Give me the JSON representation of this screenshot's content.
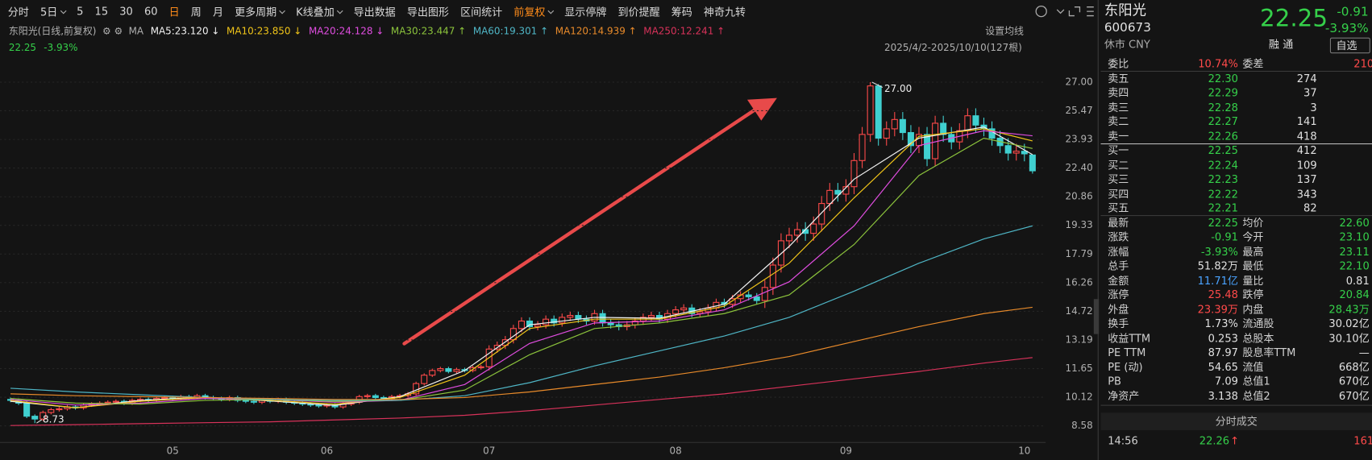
{
  "toolbar": [
    {
      "label": "分时"
    },
    {
      "label": "5日",
      "menu": true
    },
    {
      "label": "5"
    },
    {
      "label": "15"
    },
    {
      "label": "30"
    },
    {
      "label": "60"
    },
    {
      "label": "日",
      "color": "#ff8c1a"
    },
    {
      "label": "周"
    },
    {
      "label": "月"
    },
    {
      "label": "更多周期",
      "menu": true
    },
    {
      "label": "K线叠加",
      "menu": true
    },
    {
      "label": "导出数据"
    },
    {
      "label": "导出图形"
    },
    {
      "label": "区间统计"
    },
    {
      "label": "前复权",
      "menu": true,
      "color": "#ff8c1a"
    },
    {
      "label": "显示停牌"
    },
    {
      "label": "到价提醒"
    },
    {
      "label": "筹码"
    },
    {
      "label": "神奇九转"
    }
  ],
  "chart_data": {
    "type": "candlestick",
    "title": "东阳光(日线,前复权)",
    "legend_title": "MA",
    "price": "22.25",
    "change_pct": "-3.93%",
    "settings_label": "设置均线",
    "range_label": "2025/4/2-2025/10/10(127根)",
    "up_color": "#ff4a4a",
    "down_color": "#40d0d0",
    "categories": [
      null,
      null,
      null,
      null,
      null,
      null,
      null,
      null,
      null,
      null,
      null,
      null,
      null,
      null,
      null,
      null,
      null,
      null,
      null,
      null,
      "05",
      null,
      null,
      null,
      null,
      null,
      null,
      null,
      null,
      null,
      null,
      null,
      null,
      null,
      null,
      null,
      null,
      null,
      null,
      "06",
      null,
      null,
      null,
      null,
      null,
      null,
      null,
      null,
      null,
      null,
      null,
      null,
      null,
      null,
      null,
      null,
      null,
      null,
      null,
      "07",
      null,
      null,
      null,
      null,
      null,
      null,
      null,
      null,
      null,
      null,
      null,
      null,
      null,
      null,
      null,
      null,
      null,
      null,
      null,
      null,
      null,
      null,
      "08",
      null,
      null,
      null,
      null,
      null,
      null,
      null,
      null,
      null,
      null,
      null,
      null,
      null,
      null,
      null,
      null,
      null,
      null,
      null,
      null,
      "09",
      null,
      null,
      null,
      null,
      null,
      null,
      null,
      null,
      null,
      null,
      null,
      null,
      null,
      null,
      null,
      null,
      null,
      null,
      null,
      null,
      null,
      "10",
      null
    ],
    "open": [
      10.0,
      9.95,
      9.8,
      9.1,
      8.95,
      9.3,
      9.45,
      9.5,
      9.6,
      9.55,
      9.7,
      9.75,
      9.8,
      9.85,
      9.9,
      9.8,
      9.95,
      10.0,
      9.95,
      10.05,
      10.1,
      10.05,
      10.15,
      10.1,
      10.2,
      10.1,
      10.05,
      10.0,
      10.1,
      9.95,
      9.9,
      9.85,
      9.95,
      9.9,
      10.0,
      9.85,
      9.8,
      9.75,
      9.7,
      9.65,
      9.7,
      9.6,
      9.75,
      9.85,
      10.15,
      10.2,
      10.1,
      10.05,
      10.15,
      10.2,
      10.3,
      10.85,
      11.3,
      11.55,
      11.65,
      11.5,
      11.6,
      11.55,
      11.7,
      11.75,
      12.7,
      12.9,
      13.2,
      13.8,
      14.2,
      13.9,
      14.0,
      14.3,
      14.1,
      14.4,
      14.5,
      14.3,
      14.2,
      14.6,
      14.1,
      14.0,
      13.9,
      14.0,
      14.2,
      14.4,
      14.5,
      14.3,
      14.6,
      14.8,
      14.9,
      14.6,
      14.7,
      14.9,
      15.2,
      15.1,
      15.4,
      15.6,
      15.5,
      15.3,
      16.0,
      17.2,
      18.5,
      18.8,
      19.1,
      18.9,
      19.4,
      20.5,
      21.2,
      21.0,
      21.4,
      22.8,
      24.2,
      26.8,
      24.0,
      24.5,
      25.0,
      24.3,
      23.6,
      24.2,
      22.9,
      24.8,
      24.2,
      23.8,
      24.4,
      25.2,
      24.7,
      24.5,
      24.0,
      23.6,
      23.2,
      23.3,
      23.1
    ],
    "high": [
      10.1,
      10.05,
      9.9,
      9.2,
      9.4,
      9.55,
      9.6,
      9.7,
      9.7,
      9.8,
      9.85,
      9.9,
      9.95,
      10.0,
      10.0,
      10.05,
      10.1,
      10.1,
      10.15,
      10.2,
      10.2,
      10.25,
      10.25,
      10.3,
      10.3,
      10.2,
      10.15,
      10.2,
      10.2,
      10.05,
      10.0,
      10.05,
      10.05,
      10.1,
      10.1,
      9.95,
      9.9,
      9.85,
      9.8,
      9.8,
      9.8,
      9.85,
      9.95,
      10.25,
      10.3,
      10.3,
      10.2,
      10.25,
      10.3,
      10.4,
      10.95,
      11.4,
      11.65,
      11.75,
      11.75,
      11.7,
      11.7,
      11.8,
      11.85,
      12.9,
      13.1,
      13.4,
      14.0,
      14.4,
      14.4,
      14.2,
      14.5,
      14.5,
      14.6,
      14.7,
      14.7,
      14.5,
      14.8,
      14.8,
      14.3,
      14.2,
      14.2,
      14.4,
      14.6,
      14.7,
      14.7,
      14.8,
      15.0,
      15.1,
      15.1,
      14.9,
      15.1,
      15.4,
      15.4,
      15.6,
      15.8,
      15.8,
      15.7,
      16.4,
      17.6,
      18.9,
      19.2,
      19.5,
      19.5,
      19.8,
      20.9,
      21.6,
      21.6,
      21.8,
      23.2,
      24.6,
      27.0,
      26.9,
      24.9,
      25.4,
      25.4,
      24.7,
      24.6,
      24.6,
      25.2,
      25.2,
      24.6,
      24.8,
      25.6,
      25.6,
      25.1,
      24.9,
      24.4,
      24.0,
      23.7,
      23.7,
      23.11
    ],
    "low": [
      9.85,
      9.7,
      9.0,
      8.73,
      8.85,
      9.2,
      9.35,
      9.4,
      9.45,
      9.45,
      9.6,
      9.65,
      9.7,
      9.75,
      9.7,
      9.7,
      9.85,
      9.85,
      9.85,
      9.95,
      9.95,
      9.95,
      10.0,
      10.0,
      10.0,
      9.95,
      9.9,
      9.9,
      9.85,
      9.8,
      9.75,
      9.75,
      9.8,
      9.8,
      9.75,
      9.7,
      9.65,
      9.6,
      9.55,
      9.55,
      9.5,
      9.5,
      9.65,
      9.75,
      10.05,
      10.0,
      9.95,
      9.95,
      10.05,
      10.1,
      10.2,
      10.75,
      11.2,
      11.45,
      11.4,
      11.4,
      11.45,
      11.45,
      11.6,
      11.55,
      12.5,
      12.7,
      13.0,
      13.6,
      13.7,
      13.7,
      13.8,
      13.9,
      13.9,
      14.2,
      14.1,
      14.0,
      14.0,
      13.9,
      13.8,
      13.7,
      13.7,
      13.8,
      14.0,
      14.2,
      14.1,
      14.1,
      14.4,
      14.6,
      14.4,
      14.4,
      14.5,
      14.7,
      14.9,
      14.9,
      15.2,
      15.3,
      15.1,
      14.9,
      15.6,
      16.8,
      18.1,
      18.4,
      18.5,
      18.5,
      19.0,
      20.1,
      20.6,
      20.6,
      21.0,
      22.4,
      23.8,
      23.6,
      23.6,
      24.1,
      23.9,
      23.2,
      23.2,
      22.5,
      22.5,
      23.8,
      23.4,
      23.4,
      24.0,
      24.3,
      24.1,
      23.6,
      23.2,
      22.8,
      22.8,
      22.76,
      22.1
    ],
    "close": [
      9.95,
      9.8,
      9.1,
      8.95,
      9.3,
      9.45,
      9.5,
      9.6,
      9.55,
      9.7,
      9.75,
      9.8,
      9.85,
      9.9,
      9.8,
      9.95,
      10.0,
      9.95,
      10.05,
      10.1,
      10.05,
      10.15,
      10.1,
      10.2,
      10.1,
      10.05,
      10.0,
      10.1,
      9.95,
      9.9,
      9.85,
      9.95,
      9.9,
      10.0,
      9.85,
      9.8,
      9.75,
      9.7,
      9.65,
      9.7,
      9.6,
      9.75,
      9.85,
      10.15,
      10.2,
      10.1,
      10.05,
      10.15,
      10.2,
      10.3,
      10.85,
      11.3,
      11.55,
      11.65,
      11.5,
      11.6,
      11.55,
      11.7,
      11.75,
      12.7,
      12.9,
      13.2,
      13.8,
      14.2,
      13.9,
      14.0,
      14.3,
      14.1,
      14.4,
      14.5,
      14.3,
      14.2,
      14.6,
      14.1,
      14.0,
      13.9,
      14.0,
      14.2,
      14.4,
      14.5,
      14.3,
      14.6,
      14.8,
      14.9,
      14.6,
      14.7,
      14.9,
      15.2,
      15.1,
      15.4,
      15.6,
      15.5,
      15.3,
      16.0,
      17.2,
      18.5,
      18.8,
      19.1,
      18.9,
      19.4,
      20.5,
      21.2,
      21.0,
      21.4,
      22.8,
      24.2,
      26.8,
      24.0,
      24.5,
      25.0,
      24.3,
      23.6,
      24.2,
      22.9,
      24.8,
      24.2,
      23.8,
      24.4,
      25.2,
      24.7,
      24.5,
      24.0,
      23.6,
      23.2,
      23.3,
      23.16,
      22.25
    ],
    "series": [
      {
        "name": "MA5:23.120 ↓",
        "color": "#f2f2f2",
        "x": [
          0,
          8,
          16,
          24,
          32,
          40,
          48,
          56,
          64,
          72,
          80,
          88,
          96,
          104,
          112,
          120,
          126
        ],
        "values": [
          9.9,
          9.55,
          9.95,
          10.12,
          9.92,
          9.68,
          10.15,
          11.55,
          14.0,
          14.4,
          14.35,
          15.1,
          18.2,
          21.8,
          24.0,
          24.6,
          23.12
        ]
      },
      {
        "name": "MA10:23.850 ↓",
        "color": "#f0c419",
        "x": [
          0,
          8,
          16,
          24,
          32,
          40,
          48,
          56,
          64,
          72,
          80,
          88,
          96,
          104,
          112,
          120,
          126
        ],
        "values": [
          9.95,
          9.55,
          9.9,
          10.1,
          9.95,
          9.75,
          10.1,
          11.3,
          13.8,
          14.3,
          14.3,
          15.0,
          17.3,
          20.8,
          24.1,
          24.5,
          23.85
        ]
      },
      {
        "name": "MA20:24.128 ↓",
        "color": "#e04de0",
        "x": [
          0,
          8,
          16,
          24,
          32,
          40,
          48,
          56,
          64,
          72,
          80,
          88,
          96,
          104,
          112,
          120,
          126
        ],
        "values": [
          10.0,
          9.7,
          9.8,
          10.05,
          10.0,
          9.85,
          9.95,
          10.8,
          13.0,
          14.1,
          14.2,
          14.8,
          16.3,
          19.3,
          23.6,
          24.4,
          24.128
        ]
      },
      {
        "name": "MA30:23.447 ↑",
        "color": "#8cc43c",
        "x": [
          0,
          8,
          16,
          24,
          32,
          40,
          48,
          56,
          64,
          72,
          80,
          88,
          96,
          104,
          112,
          120,
          126
        ],
        "values": [
          10.05,
          9.8,
          9.75,
          9.95,
          10.0,
          9.9,
          9.95,
          10.5,
          12.4,
          13.8,
          14.1,
          14.6,
          15.6,
          18.3,
          22.0,
          24.0,
          23.447
        ]
      },
      {
        "name": "MA60:19.301 ↑",
        "color": "#4fb6c6",
        "x": [
          0,
          8,
          16,
          24,
          32,
          40,
          48,
          56,
          64,
          72,
          80,
          88,
          96,
          104,
          112,
          120,
          126
        ],
        "values": [
          10.6,
          10.4,
          10.25,
          10.1,
          10.0,
          9.95,
          9.95,
          10.2,
          10.9,
          11.8,
          12.6,
          13.4,
          14.4,
          15.8,
          17.3,
          18.6,
          19.301
        ]
      },
      {
        "name": "MA120:14.939 ↑",
        "color": "#e88a2a",
        "x": [
          0,
          8,
          16,
          24,
          32,
          40,
          48,
          56,
          64,
          72,
          80,
          88,
          96,
          104,
          112,
          120,
          126
        ],
        "values": [
          10.3,
          10.2,
          10.15,
          10.1,
          10.05,
          10.0,
          10.0,
          10.1,
          10.4,
          10.8,
          11.2,
          11.7,
          12.3,
          13.1,
          13.9,
          14.6,
          14.939
        ]
      },
      {
        "name": "MA250:12.241 ↑",
        "color": "#d8325a",
        "x": [
          0,
          8,
          16,
          24,
          32,
          40,
          48,
          56,
          64,
          72,
          80,
          88,
          96,
          104,
          112,
          120,
          126
        ],
        "values": [
          8.6,
          8.65,
          8.7,
          8.75,
          8.8,
          8.9,
          9.0,
          9.15,
          9.4,
          9.7,
          10.0,
          10.3,
          10.7,
          11.1,
          11.5,
          11.95,
          12.241
        ]
      }
    ],
    "ylim": [
      7.74,
      27.28
    ],
    "yticks": [
      8.58,
      10.12,
      11.65,
      13.19,
      14.72,
      16.26,
      17.79,
      19.33,
      20.86,
      {
        "value": 22.4,
        "label": "22.40"
      },
      23.93,
      25.47,
      {
        "value": 27,
        "label": "27.00"
      }
    ],
    "grid": true,
    "annotations": {
      "high": {
        "value": 27,
        "label": "27.00"
      },
      "low": 8.73
    }
  },
  "quote": {
    "name": "东阳光",
    "code": "600673",
    "status": "休市 CNY",
    "price": "22.25",
    "change": "-0.91",
    "change_pct": "-3.93%",
    "buttons": [
      "融",
      "通",
      "自选"
    ]
  },
  "order_book": {
    "ratio_label": "委比",
    "ratio": "10.74%",
    "diff_label": "委差",
    "diff": "210",
    "asks": [
      [
        "卖五",
        "22.30",
        "274"
      ],
      [
        "卖四",
        "22.29",
        "37"
      ],
      [
        "卖三",
        "22.28",
        "3"
      ],
      [
        "卖二",
        "22.27",
        "141"
      ],
      [
        "卖一",
        "22.26",
        "418"
      ]
    ],
    "bids": [
      [
        "买一",
        "22.25",
        "412"
      ],
      [
        "买二",
        "22.24",
        "109"
      ],
      [
        "买三",
        "22.23",
        "137"
      ],
      [
        "买四",
        "22.22",
        "343"
      ],
      [
        "买五",
        "22.21",
        "82"
      ]
    ]
  },
  "stats": [
    {
      "l1": "最新",
      "v1": "22.25",
      "c1": "#35d04a",
      "l2": "均价",
      "v2": "22.60",
      "c2": "#35d04a"
    },
    {
      "l1": "涨跌",
      "v1": "-0.91",
      "c1": "#35d04a",
      "l2": "今开",
      "v2": "23.10",
      "c2": "#35d04a"
    },
    {
      "l1": "涨幅",
      "v1": "-3.93%",
      "c1": "#35d04a",
      "l2": "最高",
      "v2": "23.11",
      "c2": "#35d04a"
    },
    {
      "l1": "总手",
      "v1": "51.82万",
      "c1": "#e0e0e0",
      "l2": "最低",
      "v2": "22.10",
      "c2": "#35d04a"
    },
    {
      "l1": "金额",
      "v1": "11.71亿",
      "c1": "#4aa3ff",
      "l2": "量比",
      "v2": "0.81",
      "c2": "#e0e0e0"
    },
    {
      "l1": "涨停",
      "v1": "25.48",
      "c1": "#ff4a4a",
      "l2": "跌停",
      "v2": "20.84",
      "c2": "#35d04a"
    },
    {
      "l1": "外盘",
      "v1": "23.39万",
      "c1": "#ff4a4a",
      "l2": "内盘",
      "v2": "28.43万",
      "c2": "#35d04a"
    },
    {
      "l1": "换手",
      "v1": "1.73%",
      "c1": "#e0e0e0",
      "l2": "流通股",
      "v2": "30.02亿",
      "c2": "#e0e0e0"
    },
    {
      "l1": "收益TTM",
      "v1": "0.253",
      "c1": "#e0e0e0",
      "l2": "总股本",
      "v2": "30.10亿",
      "c2": "#e0e0e0"
    },
    {
      "l1": "PE TTM",
      "v1": "87.97",
      "c1": "#e0e0e0",
      "l2": "股息率TTM",
      "v2": "—",
      "c2": "#e0e0e0"
    },
    {
      "l1": "PE (动)",
      "v1": "54.65",
      "c1": "#e0e0e0",
      "l2": "流值",
      "v2": "668亿",
      "c2": "#e0e0e0"
    },
    {
      "l1": "PB",
      "v1": "7.09",
      "c1": "#e0e0e0",
      "l2": "总值1",
      "v2": "670亿",
      "c2": "#e0e0e0"
    },
    {
      "l1": "净资产",
      "v1": "3.138",
      "c1": "#e0e0e0",
      "l2": "总值2",
      "v2": "670亿",
      "c2": "#e0e0e0"
    }
  ],
  "trades": {
    "title": "分时成交",
    "rows": [
      [
        "14:56",
        "22.26",
        "161"
      ]
    ]
  }
}
